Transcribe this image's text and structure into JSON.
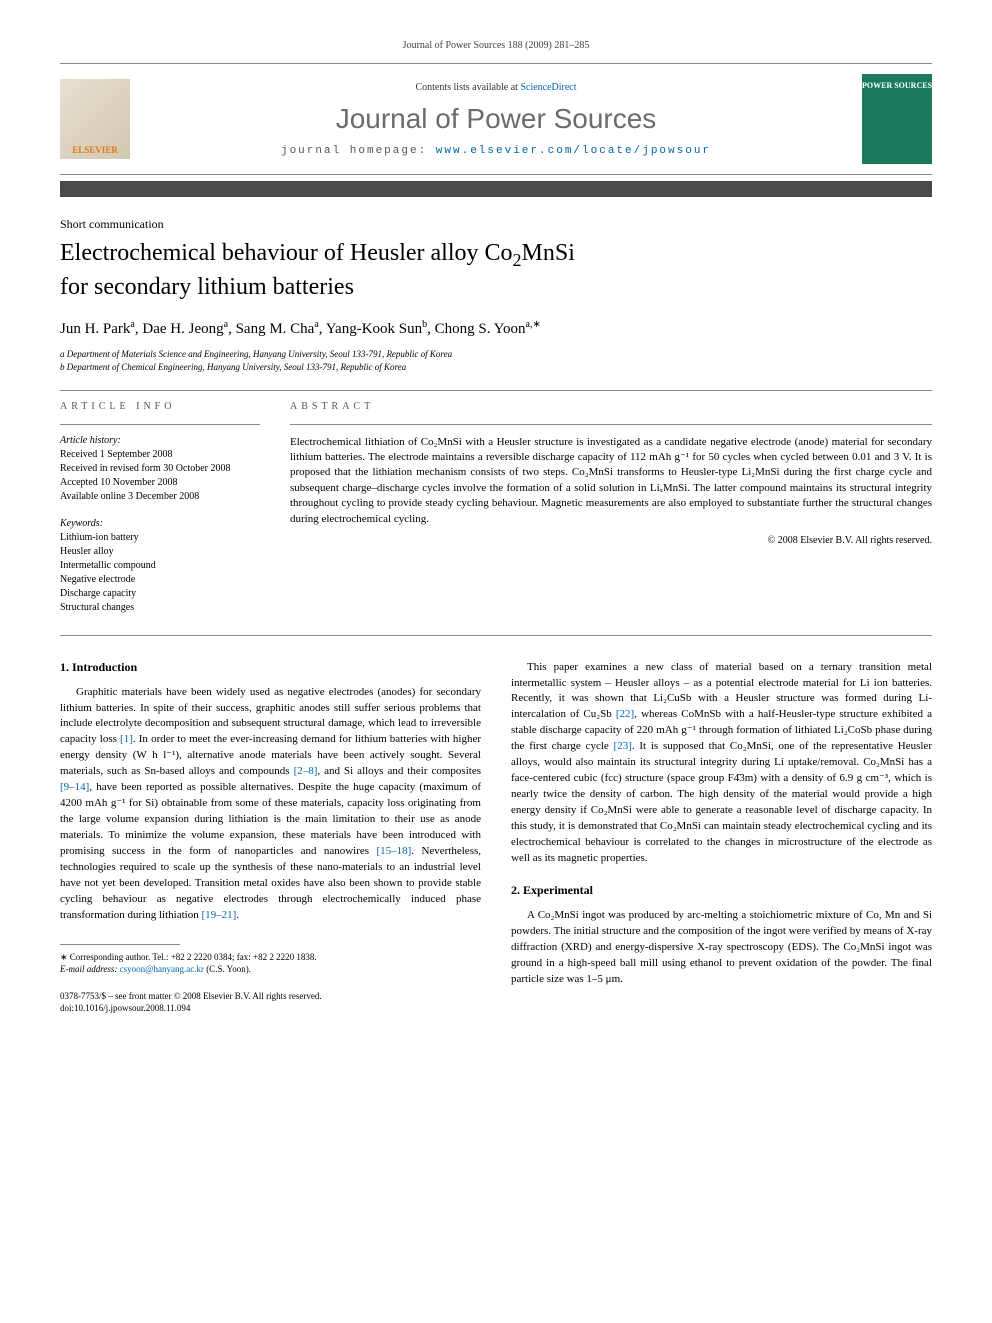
{
  "header": {
    "citation": "Journal of Power Sources 188 (2009) 281–285",
    "contents_prefix": "Contents lists available at ",
    "contents_link": "ScienceDirect",
    "journal_name": "Journal of Power Sources",
    "homepage_prefix": "journal homepage: ",
    "homepage_url": "www.elsevier.com/locate/jpowsour",
    "elsevier_label": "ELSEVIER",
    "cover_title": "POWER SOURCES"
  },
  "article": {
    "type": "Short communication",
    "title_line1": "Electrochemical behaviour of Heusler alloy Co",
    "title_sub1": "2",
    "title_line1b": "MnSi",
    "title_line2": "for secondary lithium batteries",
    "authors_html": "Jun H. Park<sup>a</sup>, Dae H. Jeong<sup>a</sup>, Sang M. Cha<sup>a</sup>, Yang-Kook Sun<sup>b</sup>, Chong S. Yoon<sup>a,∗</sup>",
    "affiliations": [
      "a Department of Materials Science and Engineering, Hanyang University, Seoul 133-791, Republic of Korea",
      "b Department of Chemical Engineering, Hanyang University, Seoul 133-791, Republic of Korea"
    ]
  },
  "info": {
    "header": "ARTICLE INFO",
    "history_label": "Article history:",
    "history": [
      "Received 1 September 2008",
      "Received in revised form 30 October 2008",
      "Accepted 10 November 2008",
      "Available online 3 December 2008"
    ],
    "keywords_label": "Keywords:",
    "keywords": [
      "Lithium-ion battery",
      "Heusler alloy",
      "Intermetallic compound",
      "Negative electrode",
      "Discharge capacity",
      "Structural changes"
    ]
  },
  "abstract": {
    "header": "ABSTRACT",
    "text": "Electrochemical lithiation of Co₂MnSi with a Heusler structure is investigated as a candidate negative electrode (anode) material for secondary lithium batteries. The electrode maintains a reversible discharge capacity of 112 mAh g⁻¹ for 50 cycles when cycled between 0.01 and 3 V. It is proposed that the lithiation mechanism consists of two steps. Co₂MnSi transforms to Heusler-type Li₂MnSi during the first charge cycle and subsequent charge–discharge cycles involve the formation of a solid solution in LiₓMnSi. The latter compound maintains its structural integrity throughout cycling to provide steady cycling behaviour. Magnetic measurements are also employed to substantiate further the structural changes during electrochemical cycling.",
    "copyright": "© 2008 Elsevier B.V. All rights reserved."
  },
  "sections": {
    "intro_heading": "1. Introduction",
    "intro_p1": "Graphitic materials have been widely used as negative electrodes (anodes) for secondary lithium batteries. In spite of their success, graphitic anodes still suffer serious problems that include electrolyte decomposition and subsequent structural damage, which lead to irreversible capacity loss [1]. In order to meet the ever-increasing demand for lithium batteries with higher energy density (W h l⁻¹), alternative anode materials have been actively sought. Several materials, such as Sn-based alloys and compounds [2–8], and Si alloys and their composites [9–14], have been reported as possible alternatives. Despite the huge capacity (maximum of 4200 mAh g⁻¹ for Si) obtainable from some of these materials, capacity loss originating from the large volume expansion during lithiation is the main limitation to their use as anode materials. To minimize the volume expansion, these materials have been introduced with promising success in the form of nanoparticles and nanowires [15–18]. Nevertheless, technologies required to scale up the synthesis of these nano-materials to an industrial level have not yet been developed. Transition metal oxides have also been shown to provide stable cycling behaviour as negative electrodes through electrochemically induced phase transformation during lithiation [19–21].",
    "intro_p2": "This paper examines a new class of material based on a ternary transition metal intermetallic system – Heusler alloys – as a potential electrode material for Li ion batteries. Recently, it was shown that Li₂CuSb with a Heusler structure was formed during Li-intercalation of Cu₂Sb [22], whereas CoMnSb with a half-Heusler-type structure exhibited a stable discharge capacity of 220 mAh g⁻¹ through formation of lithiated Li₂CoSb phase during the first charge cycle [23]. It is supposed that Co₂MnSi, one of the representative Heusler alloys, would also maintain its structural integrity during Li uptake/removal. Co₂MnSi has a face-centered cubic (fcc) structure (space group F4̄3m) with a density of 6.9 g cm⁻³, which is nearly twice the density of carbon. The high density of the material would provide a high energy density if Co₂MnSi were able to generate a reasonable level of discharge capacity. In this study, it is demonstrated that Co₂MnSi can maintain steady electrochemical cycling and its electrochemical behaviour is correlated to the changes in microstructure of the electrode as well as its magnetic properties.",
    "exp_heading": "2. Experimental",
    "exp_p1": "A Co₂MnSi ingot was produced by arc-melting a stoichiometric mixture of Co, Mn and Si powders. The initial structure and the composition of the ingot were verified by means of X-ray diffraction (XRD) and energy-dispersive X-ray spectroscopy (EDS). The Co₂MnSi ingot was ground in a high-speed ball mill using ethanol to prevent oxidation of the powder. The final particle size was 1–5 μm."
  },
  "footer": {
    "corresponding_label": "∗ Corresponding author. Tel.: +82 2 2220 0384; fax: +82 2 2220 1838.",
    "email_label": "E-mail address: ",
    "email": "csyoon@hanyang.ac.kr",
    "email_suffix": " (C.S. Yoon).",
    "issn_line": "0378-7753/$ – see front matter © 2008 Elsevier B.V. All rights reserved.",
    "doi_line": "doi:10.1016/j.jpowsour.2008.11.094"
  },
  "colors": {
    "link": "#0066aa",
    "text": "#000000",
    "gray": "#6b6b6b",
    "darkbar": "#4a4a4a",
    "cover": "#1a7a5e",
    "elsevier_orange": "#e67817"
  }
}
